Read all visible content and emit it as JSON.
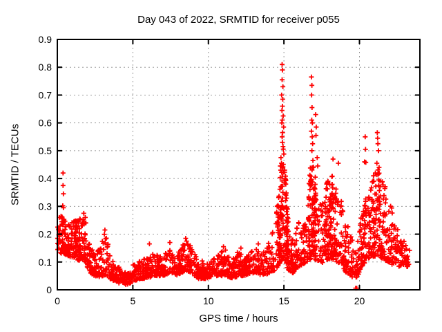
{
  "title": "Day 043 of 2022, SRMTID for receiver p055",
  "chart_data": {
    "type": "scatter",
    "title": "Day 043 of 2022, SRMTID for receiver p055",
    "xlabel": "GPS time / hours",
    "ylabel": "SRMTID / TECUs",
    "xlim": [
      0,
      24
    ],
    "ylim": [
      0,
      0.9
    ],
    "x_ticks": [
      {
        "v": 0,
        "label": "0"
      },
      {
        "v": 5,
        "label": "5"
      },
      {
        "v": 10,
        "label": "10"
      },
      {
        "v": 15,
        "label": "15"
      },
      {
        "v": 20,
        "label": "20"
      }
    ],
    "y_ticks": [
      {
        "v": 0.0,
        "label": "0"
      },
      {
        "v": 0.1,
        "label": "0.1"
      },
      {
        "v": 0.2,
        "label": "0.2"
      },
      {
        "v": 0.3,
        "label": "0.3"
      },
      {
        "v": 0.4,
        "label": "0.4"
      },
      {
        "v": 0.5,
        "label": "0.5"
      },
      {
        "v": 0.6,
        "label": "0.6"
      },
      {
        "v": 0.7,
        "label": "0.7"
      },
      {
        "v": 0.8,
        "label": "0.8"
      }
    ],
    "grid": true,
    "legend": "none",
    "marker": "plus",
    "marker_size_px": 7,
    "colors": {
      "points": "#ff0000",
      "grid": "#999999",
      "axis": "#000000",
      "background": "#ffffff",
      "text": "#000000"
    },
    "data_start_hour": 0.02,
    "data_end_hour": 23.35,
    "n_points": 1800,
    "seed": 20220043,
    "band_skew": 1.7,
    "cluster_skew": 1.0,
    "envelope_anchors": [
      [
        0.0,
        0.13,
        0.26
      ],
      [
        0.4,
        0.13,
        0.27
      ],
      [
        0.8,
        0.12,
        0.24
      ],
      [
        1.2,
        0.11,
        0.25
      ],
      [
        1.6,
        0.1,
        0.26
      ],
      [
        1.9,
        0.09,
        0.24
      ],
      [
        2.2,
        0.06,
        0.17
      ],
      [
        2.6,
        0.045,
        0.13
      ],
      [
        3.0,
        0.05,
        0.19
      ],
      [
        3.2,
        0.05,
        0.21
      ],
      [
        3.5,
        0.04,
        0.12
      ],
      [
        4.0,
        0.025,
        0.09
      ],
      [
        4.6,
        0.018,
        0.06
      ],
      [
        5.0,
        0.03,
        0.09
      ],
      [
        5.5,
        0.04,
        0.11
      ],
      [
        6.0,
        0.04,
        0.12
      ],
      [
        6.4,
        0.05,
        0.13
      ],
      [
        7.0,
        0.05,
        0.12
      ],
      [
        7.4,
        0.06,
        0.16
      ],
      [
        7.8,
        0.05,
        0.12
      ],
      [
        8.2,
        0.06,
        0.15
      ],
      [
        8.5,
        0.07,
        0.18
      ],
      [
        8.9,
        0.06,
        0.16
      ],
      [
        9.3,
        0.04,
        0.11
      ],
      [
        9.8,
        0.04,
        0.1
      ],
      [
        10.3,
        0.05,
        0.11
      ],
      [
        10.9,
        0.05,
        0.14
      ],
      [
        11.2,
        0.05,
        0.15
      ],
      [
        11.6,
        0.04,
        0.12
      ],
      [
        12.0,
        0.05,
        0.14
      ],
      [
        12.4,
        0.05,
        0.12
      ],
      [
        12.8,
        0.06,
        0.14
      ],
      [
        13.2,
        0.06,
        0.15
      ],
      [
        13.6,
        0.05,
        0.13
      ],
      [
        14.0,
        0.06,
        0.17
      ],
      [
        14.4,
        0.07,
        0.24
      ],
      [
        14.7,
        0.09,
        0.35
      ],
      [
        14.9,
        0.11,
        0.55
      ],
      [
        15.1,
        0.09,
        0.42
      ],
      [
        15.3,
        0.07,
        0.25
      ],
      [
        15.6,
        0.06,
        0.18
      ],
      [
        15.9,
        0.08,
        0.26
      ],
      [
        16.2,
        0.09,
        0.22
      ],
      [
        16.5,
        0.1,
        0.28
      ],
      [
        16.8,
        0.11,
        0.5
      ],
      [
        17.0,
        0.11,
        0.45
      ],
      [
        17.3,
        0.09,
        0.3
      ],
      [
        17.6,
        0.1,
        0.33
      ],
      [
        17.9,
        0.11,
        0.4
      ],
      [
        18.2,
        0.11,
        0.42
      ],
      [
        18.5,
        0.1,
        0.36
      ],
      [
        18.8,
        0.09,
        0.33
      ],
      [
        19.1,
        0.06,
        0.25
      ],
      [
        19.4,
        0.05,
        0.2
      ],
      [
        19.7,
        0.04,
        0.16
      ],
      [
        19.9,
        0.05,
        0.18
      ],
      [
        20.1,
        0.08,
        0.26
      ],
      [
        20.4,
        0.1,
        0.35
      ],
      [
        20.7,
        0.11,
        0.38
      ],
      [
        21.0,
        0.12,
        0.42
      ],
      [
        21.3,
        0.12,
        0.45
      ],
      [
        21.6,
        0.11,
        0.4
      ],
      [
        21.9,
        0.1,
        0.36
      ],
      [
        22.2,
        0.09,
        0.28
      ],
      [
        22.5,
        0.08,
        0.22
      ],
      [
        22.8,
        0.09,
        0.19
      ],
      [
        23.1,
        0.08,
        0.16
      ],
      [
        23.35,
        0.09,
        0.16
      ]
    ],
    "extra_clusters": [
      [
        14.6,
        15.25,
        90
      ],
      [
        16.6,
        17.15,
        80
      ],
      [
        17.7,
        18.45,
        70
      ],
      [
        20.2,
        21.7,
        90
      ],
      [
        0.02,
        1.9,
        60
      ]
    ],
    "outlier_points": [
      [
        0.38,
        0.42
      ],
      [
        0.38,
        0.375
      ],
      [
        0.4,
        0.345
      ],
      [
        0.36,
        0.302
      ],
      [
        0.4,
        0.295
      ],
      [
        0.33,
        0.255
      ],
      [
        1.75,
        0.275
      ],
      [
        1.85,
        0.26
      ],
      [
        3.15,
        0.215
      ],
      [
        6.1,
        0.165
      ],
      [
        7.45,
        0.17
      ],
      [
        8.5,
        0.185
      ],
      [
        8.55,
        0.175
      ],
      [
        11.0,
        0.155
      ],
      [
        12.15,
        0.15
      ],
      [
        13.3,
        0.165
      ],
      [
        14.55,
        0.3
      ],
      [
        14.6,
        0.27
      ],
      [
        14.88,
        0.81
      ],
      [
        14.9,
        0.79
      ],
      [
        14.88,
        0.755
      ],
      [
        14.93,
        0.73
      ],
      [
        14.85,
        0.7
      ],
      [
        14.92,
        0.685
      ],
      [
        14.9,
        0.66
      ],
      [
        14.87,
        0.645
      ],
      [
        14.95,
        0.625
      ],
      [
        14.89,
        0.61
      ],
      [
        14.86,
        0.6
      ],
      [
        14.98,
        0.585
      ],
      [
        14.91,
        0.565
      ],
      [
        14.88,
        0.55
      ],
      [
        14.9,
        0.53
      ],
      [
        14.94,
        0.515
      ],
      [
        14.8,
        0.475
      ],
      [
        14.84,
        0.455
      ],
      [
        14.76,
        0.445
      ],
      [
        14.79,
        0.43
      ],
      [
        15.05,
        0.43
      ],
      [
        15.08,
        0.4
      ],
      [
        15.12,
        0.38
      ],
      [
        16.82,
        0.765
      ],
      [
        16.85,
        0.735
      ],
      [
        16.83,
        0.7
      ],
      [
        16.86,
        0.655
      ],
      [
        16.84,
        0.61
      ],
      [
        16.88,
        0.6
      ],
      [
        16.82,
        0.57
      ],
      [
        16.87,
        0.55
      ],
      [
        16.9,
        0.525
      ],
      [
        16.85,
        0.5
      ],
      [
        16.92,
        0.465
      ],
      [
        16.95,
        0.44
      ],
      [
        17.1,
        0.63
      ],
      [
        17.14,
        0.585
      ],
      [
        17.12,
        0.555
      ],
      [
        17.2,
        0.475
      ],
      [
        17.24,
        0.445
      ],
      [
        18.25,
        0.47
      ],
      [
        18.6,
        0.455
      ],
      [
        19.75,
        0.006
      ],
      [
        19.82,
        0.006
      ],
      [
        20.34,
        0.46
      ],
      [
        20.38,
        0.55
      ],
      [
        20.4,
        0.505
      ],
      [
        20.42,
        0.458
      ],
      [
        21.05,
        0.42
      ],
      [
        21.15,
        0.455
      ],
      [
        21.18,
        0.565
      ],
      [
        21.2,
        0.545
      ],
      [
        21.22,
        0.525
      ],
      [
        21.26,
        0.5
      ],
      [
        21.3,
        0.44
      ]
    ]
  }
}
